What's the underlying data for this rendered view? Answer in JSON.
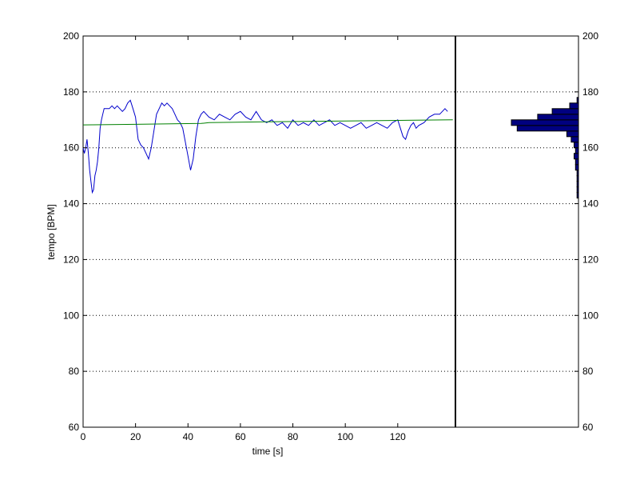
{
  "chart_data": {
    "type": "line",
    "xlabel": "time [s]",
    "ylabel": "tempo [BPM]",
    "xlim": [
      0,
      142
    ],
    "ylim": [
      60,
      200
    ],
    "x_ticks": [
      0,
      20,
      40,
      60,
      80,
      100,
      120
    ],
    "y_ticks": [
      60,
      80,
      100,
      120,
      140,
      160,
      180,
      200
    ],
    "grid": "horizontal-dotted",
    "colors": {
      "tempo_line": "#0000cc",
      "trend_line": "#008000",
      "histogram": "#000080"
    },
    "series": [
      {
        "x": [
          0,
          0.5,
          1,
          1.5,
          2,
          2.5,
          3,
          3.5,
          4,
          4.5,
          5,
          5.5,
          6,
          6.5,
          7,
          7.5,
          8,
          9,
          10,
          11,
          12,
          13,
          14,
          15,
          16,
          17,
          18,
          19,
          20,
          21,
          22,
          23,
          24,
          25,
          26,
          27,
          28,
          29,
          30,
          31,
          32,
          33,
          34,
          35,
          36,
          37,
          38,
          39,
          40,
          41,
          42,
          43,
          44,
          45,
          46,
          48,
          50,
          52,
          54,
          56,
          58,
          60,
          62,
          64,
          66,
          68,
          70,
          72,
          74,
          76,
          78,
          80,
          82,
          84,
          86,
          88,
          90,
          92,
          94,
          96,
          98,
          100,
          102,
          104,
          106,
          108,
          110,
          112,
          114,
          116,
          118,
          120,
          121,
          122,
          123,
          124,
          125,
          126,
          127,
          128,
          130,
          132,
          134,
          136,
          138,
          139
        ],
        "values": [
          160,
          158,
          160,
          163,
          158,
          152,
          148,
          144,
          145,
          150,
          152,
          155,
          160,
          167,
          170,
          172,
          174,
          174,
          174,
          175,
          174,
          175,
          174,
          173,
          174,
          176,
          177,
          174,
          171,
          163,
          161,
          160,
          158,
          156,
          160,
          166,
          172,
          174,
          176,
          175,
          176,
          175,
          174,
          172,
          170,
          169,
          167,
          162,
          157,
          152,
          156,
          164,
          170,
          172,
          173,
          171,
          170,
          172,
          171,
          170,
          172,
          173,
          171,
          170,
          173,
          170,
          169,
          170,
          168,
          169,
          167,
          170,
          168,
          169,
          168,
          170,
          168,
          169,
          170,
          168,
          169,
          168,
          167,
          168,
          169,
          167,
          168,
          169,
          168,
          167,
          169,
          170,
          167,
          164,
          163,
          166,
          168,
          169,
          167,
          168,
          169,
          171,
          172,
          172,
          174,
          173
        ]
      },
      {
        "x": [
          0,
          20,
          45,
          48,
          70,
          100,
          130,
          141
        ],
        "values": [
          168.2,
          168.4,
          168.7,
          169.0,
          169.3,
          169.6,
          169.9,
          170.0
        ]
      }
    ],
    "histogram": {
      "bins": [
        143,
        145,
        147,
        149,
        151,
        153,
        155,
        157,
        159,
        161,
        163,
        165,
        167,
        169,
        171,
        173,
        175,
        177
      ],
      "counts": [
        1,
        1,
        1,
        1,
        1,
        2,
        2,
        3,
        2,
        3,
        5,
        8,
        42,
        46,
        28,
        18,
        6,
        1
      ]
    }
  }
}
